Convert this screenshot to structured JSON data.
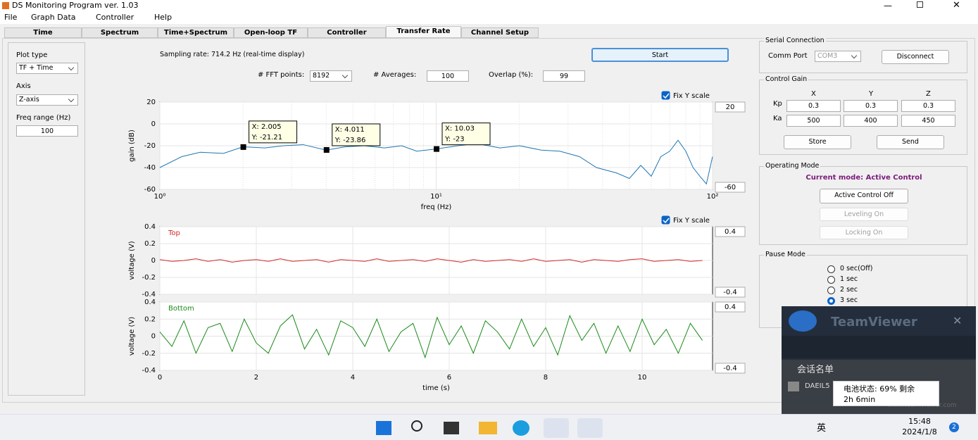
{
  "window": {
    "title": "DS Monitoring Program ver. 1.03"
  },
  "menu": [
    "File",
    "Graph Data",
    "Controller",
    "Help"
  ],
  "tabs": [
    "Time",
    "Spectrum",
    "Time+Spectrum",
    "Open-loop TF",
    "Controller",
    "Transfer Rate",
    "Channel Setup"
  ],
  "active_tab": 5,
  "left_panel": {
    "plot_type_label": "Plot type",
    "plot_type": "TF + Time",
    "axis_label": "Axis",
    "axis": "Z-axis",
    "freq_range_label": "Freq range (Hz)",
    "freq_range": "100"
  },
  "controls": {
    "sampling_rate": "Sampling rate: 714.2 Hz (real-time display)",
    "start": "Start",
    "fft_label": "# FFT points:",
    "fft": "8192",
    "avg_label": "# Averages:",
    "avg": "100",
    "overlap_label": "Overlap (%):",
    "overlap": "99"
  },
  "chart_data": [
    {
      "type": "line",
      "log_x": true,
      "grid": true,
      "ylabel": "gain (dB)",
      "xlabel": "freq (Hz)",
      "xlim": [
        1,
        100
      ],
      "ylim": [
        -60,
        20
      ],
      "xticks": [
        {
          "value": 1,
          "label": "10⁰"
        },
        {
          "value": 10,
          "label": "10¹"
        },
        {
          "value": 100,
          "label": "10²"
        }
      ],
      "minor_xticks": [
        2,
        3,
        4,
        5,
        6,
        7,
        8,
        9,
        20,
        30,
        40,
        50,
        60,
        70,
        80,
        90
      ],
      "yticks": [
        -60,
        -40,
        -20,
        0,
        20
      ],
      "x": [
        1,
        1.2,
        1.4,
        1.7,
        2,
        2.4,
        2.8,
        3.3,
        4,
        4.7,
        5.5,
        6.5,
        7.5,
        8.5,
        10,
        12,
        14,
        17,
        20,
        24,
        28,
        33,
        38,
        45,
        50,
        55,
        60,
        65,
        70,
        75,
        80,
        85,
        90,
        95,
        100
      ],
      "series": [
        {
          "color": "#1f77b4",
          "values": [
            -40,
            -30,
            -26,
            -27,
            -21,
            -22,
            -20,
            -19,
            -24,
            -21,
            -20,
            -22,
            -20,
            -25,
            -23,
            -20,
            -18,
            -22,
            -20,
            -24,
            -25,
            -30,
            -40,
            -45,
            -50,
            -38,
            -48,
            -30,
            -25,
            -15,
            -25,
            -40,
            -48,
            -55,
            -30
          ]
        }
      ],
      "datatips": [
        {
          "x": 2.005,
          "y": -21.21,
          "x_label": "X: 2.005",
          "y_label": "Y: -21.21"
        },
        {
          "x": 4.011,
          "y": -23.86,
          "x_label": "X: 4.011",
          "y_label": "Y: -23.86"
        },
        {
          "x": 10.03,
          "y": -23,
          "x_label": "X: 10.03",
          "y_label": "Y: -23"
        }
      ],
      "fix_y_scale": {
        "label": "Fix Y scale",
        "checked": true,
        "max": "20",
        "min": "-60"
      }
    },
    {
      "type": "line",
      "grid": true,
      "ylabel": "voltage (V)",
      "xlim": [
        0,
        11.46
      ],
      "ylim": [
        -0.4,
        0.4
      ],
      "yticks": [
        -0.4,
        -0.2,
        0,
        0.2,
        0.4
      ],
      "xgrid": [
        0,
        2,
        4,
        6,
        8,
        10
      ],
      "x": [
        0,
        0.25,
        0.5,
        0.75,
        1,
        1.25,
        1.5,
        1.75,
        2,
        2.25,
        2.5,
        2.75,
        3,
        3.25,
        3.5,
        3.75,
        4,
        4.25,
        4.5,
        4.75,
        5,
        5.25,
        5.5,
        5.75,
        6,
        6.25,
        6.5,
        6.75,
        7,
        7.25,
        7.5,
        7.75,
        8,
        8.25,
        8.5,
        8.75,
        9,
        9.25,
        9.5,
        9.75,
        10,
        10.25,
        10.5,
        10.75,
        11,
        11.25
      ],
      "series": [
        {
          "name": "Top",
          "color": "#d62728",
          "values": [
            0.01,
            -0.01,
            0,
            0.02,
            -0.01,
            0.01,
            -0.02,
            0,
            0.01,
            -0.01,
            0.02,
            -0.01,
            0,
            0.01,
            -0.02,
            0.01,
            0,
            -0.01,
            0.02,
            -0.01,
            0,
            0.01,
            -0.01,
            0.02,
            0,
            -0.02,
            0.01,
            -0.01,
            0,
            0.01,
            -0.01,
            0.02,
            -0.01,
            0,
            0.01,
            -0.02,
            0.01,
            0,
            -0.01,
            0.01,
            0.02,
            -0.01,
            0,
            0.01,
            -0.01,
            0
          ]
        }
      ],
      "fix_y_scale": {
        "label": "Fix Y scale",
        "checked": true,
        "max": "0.4",
        "min": "-0.4"
      }
    },
    {
      "type": "line",
      "grid": true,
      "ylabel": "voltage (V)",
      "xlabel": "time (s)",
      "xlim": [
        0,
        11.46
      ],
      "ylim": [
        -0.4,
        0.4
      ],
      "yticks": [
        -0.4,
        -0.2,
        0,
        0.2,
        0.4
      ],
      "xticks": [
        0,
        2,
        4,
        6,
        8,
        10
      ],
      "x": [
        0,
        0.25,
        0.5,
        0.75,
        1,
        1.25,
        1.5,
        1.75,
        2,
        2.25,
        2.5,
        2.75,
        3,
        3.25,
        3.5,
        3.75,
        4,
        4.25,
        4.5,
        4.75,
        5,
        5.25,
        5.5,
        5.75,
        6,
        6.25,
        6.5,
        6.75,
        7,
        7.25,
        7.5,
        7.75,
        8,
        8.25,
        8.5,
        8.75,
        9,
        9.25,
        9.5,
        9.75,
        10,
        10.25,
        10.5,
        10.75,
        11,
        11.25
      ],
      "series": [
        {
          "name": "Bottom",
          "color": "#1a8a1a",
          "values": [
            0.05,
            -0.12,
            0.18,
            -0.2,
            0.1,
            0.15,
            -0.18,
            0.2,
            -0.08,
            -0.2,
            0.12,
            0.25,
            -0.15,
            0.08,
            -0.22,
            0.18,
            0.1,
            -0.12,
            0.2,
            -0.18,
            0.05,
            0.15,
            -0.25,
            0.22,
            -0.1,
            0.12,
            -0.2,
            0.18,
            0.05,
            -0.15,
            0.2,
            -0.12,
            0.1,
            -0.22,
            0.24,
            -0.05,
            0.15,
            -0.2,
            0.12,
            -0.18,
            0.2,
            -0.1,
            0.08,
            -0.2,
            0.15,
            -0.05
          ]
        }
      ],
      "fix_y_scale": {
        "max": "0.4",
        "min": "-0.4"
      }
    }
  ],
  "serial": {
    "title": "Serial Connection",
    "port_label": "Comm Port",
    "port": "COM3",
    "button": "Disconnect"
  },
  "gain": {
    "title": "Control Gain",
    "columns": [
      "X",
      "Y",
      "Z"
    ],
    "rows": [
      {
        "label": "Kp",
        "values": [
          "0.3",
          "0.3",
          "0.3"
        ]
      },
      {
        "label": "Ka",
        "values": [
          "500",
          "400",
          "450"
        ]
      }
    ],
    "store": "Store",
    "send": "Send"
  },
  "mode": {
    "title": "Operating Mode",
    "current": "Current mode: Active Control",
    "buttons": [
      "Active Control Off",
      "Leveling On",
      "Locking On"
    ]
  },
  "pause": {
    "title": "Pause Mode",
    "options": [
      "0 sec(Off)",
      "1 sec",
      "2 sec",
      "3 sec"
    ],
    "selected": 3
  },
  "teamviewer": {
    "title": "TeamViewer",
    "session_list": "会话名单",
    "partner": "DAEIL5",
    "tooltip": [
      "电池状态: 69% 剩余",
      "2h 6min"
    ],
    "footer": "www.teamviewer.com"
  },
  "taskbar": {
    "ime": "英",
    "time": "15:48",
    "date": "2024/1/8",
    "badge": "2"
  }
}
